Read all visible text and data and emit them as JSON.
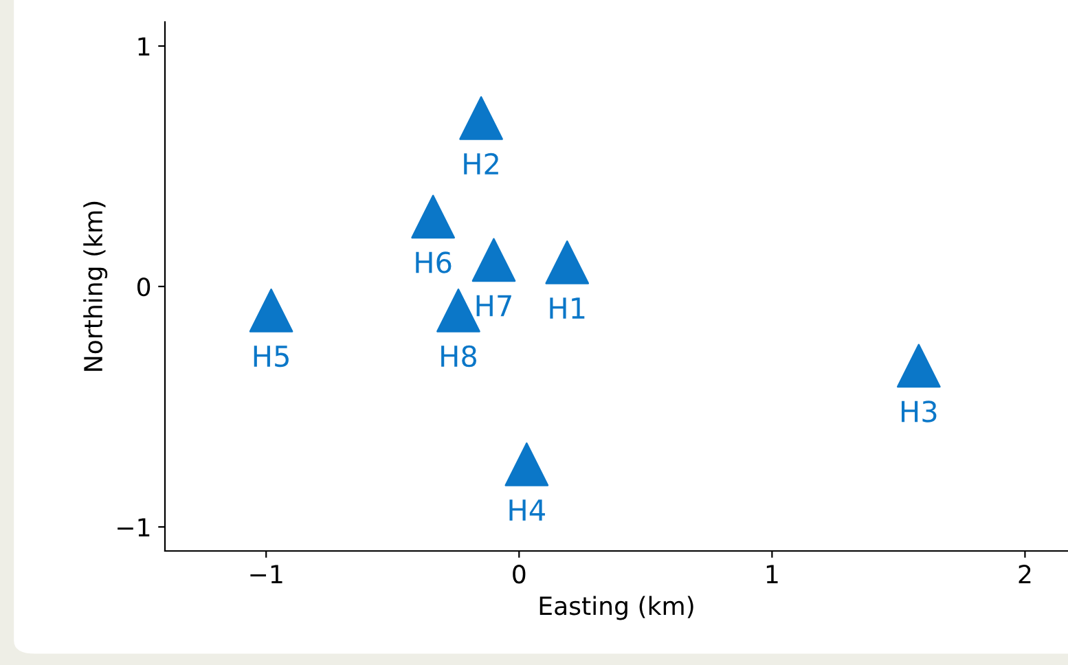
{
  "chart_data": {
    "type": "scatter",
    "xlabel": "Easting (km)",
    "ylabel": "Northing (km)",
    "x": [
      0.19,
      -0.15,
      1.58,
      0.03,
      -0.98,
      -0.34,
      -0.1,
      -0.24
    ],
    "values": [
      0.1,
      0.7,
      -0.33,
      -0.74,
      -0.1,
      0.29,
      0.11,
      -0.1
    ],
    "value_labels": [
      "H1",
      "H2",
      "H3",
      "H4",
      "H5",
      "H6",
      "H7",
      "H8"
    ],
    "color": "#0b77c8",
    "marker": "triangle",
    "xlim": [
      -1.4,
      2.17
    ],
    "xticks": [
      -1,
      0,
      1,
      2
    ],
    "ylim": [
      -1.1,
      1.1
    ],
    "yticks": [
      -1,
      0,
      1
    ],
    "grid": false,
    "legend": false
  }
}
